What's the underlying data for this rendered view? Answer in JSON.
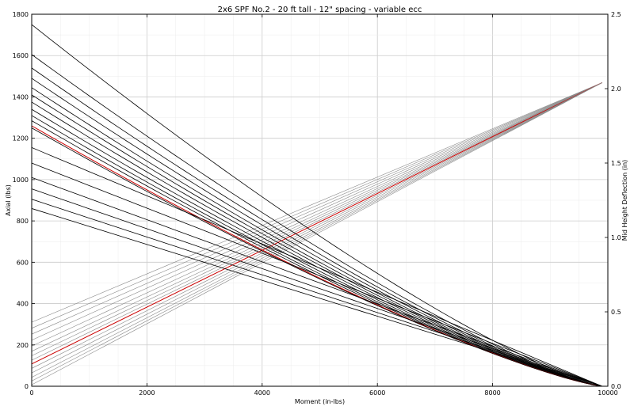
{
  "chart_data": {
    "type": "line",
    "title": "2x6 SPF No.2 - 20 ft tall - 12\" spacing - variable ecc",
    "xlabel": "Moment (in-lbs)",
    "ylabel": "Axial (lbs)",
    "y2label": "Mid Height Deflection (in)",
    "xlim": [
      0,
      10000
    ],
    "ylim": [
      0,
      1800
    ],
    "y2lim": [
      0,
      2.5
    ],
    "x_ticks": [
      "0",
      "2000",
      "4000",
      "6000",
      "8000",
      "10000"
    ],
    "y_ticks": [
      "0",
      "200",
      "400",
      "600",
      "800",
      "1000",
      "1200",
      "1400",
      "1600",
      "1800"
    ],
    "y2_ticks": [
      "0.0",
      "0.5",
      "1.0",
      "1.5",
      "2.0",
      "2.5"
    ],
    "grid": true,
    "colors": {
      "interaction": "#000000",
      "deflection": "#888888",
      "highlight": "#cc0000"
    },
    "interaction_curves": [
      {
        "start_axial": 1750,
        "end_moment": 9900,
        "kind": "curved"
      },
      {
        "start_axial": 1605,
        "end_moment": 9900,
        "kind": "curved"
      },
      {
        "start_axial": 1540,
        "end_moment": 9900,
        "kind": "curved"
      },
      {
        "start_axial": 1490,
        "end_moment": 9900,
        "kind": "curved"
      },
      {
        "start_axial": 1445,
        "end_moment": 9900,
        "kind": "curved"
      },
      {
        "start_axial": 1410,
        "end_moment": 9900,
        "kind": "curved"
      },
      {
        "start_axial": 1375,
        "end_moment": 9900,
        "kind": "curved"
      },
      {
        "start_axial": 1340,
        "end_moment": 9900,
        "kind": "curved"
      },
      {
        "start_axial": 1310,
        "end_moment": 9900,
        "kind": "curved"
      },
      {
        "start_axial": 1285,
        "end_moment": 9900,
        "kind": "curved"
      },
      {
        "start_axial": 1260,
        "end_moment": 9900,
        "kind": "curved",
        "highlight": true
      },
      {
        "start_axial": 1250,
        "end_moment": 9900,
        "kind": "curved"
      },
      {
        "start_axial": 1155,
        "end_moment": 9900,
        "kind": "straight"
      },
      {
        "start_axial": 1080,
        "end_moment": 9900,
        "kind": "straight"
      },
      {
        "start_axial": 1010,
        "end_moment": 9900,
        "kind": "straight"
      },
      {
        "start_axial": 955,
        "end_moment": 9900,
        "kind": "straight"
      },
      {
        "start_axial": 905,
        "end_moment": 9900,
        "kind": "straight"
      },
      {
        "start_axial": 860,
        "end_moment": 9900,
        "kind": "straight"
      }
    ],
    "deflection_lines": [
      {
        "start_deflection": 0.43,
        "end_moment": 9900,
        "end_deflection": 2.04
      },
      {
        "start_deflection": 0.39,
        "end_moment": 9900,
        "end_deflection": 2.04
      },
      {
        "start_deflection": 0.35,
        "end_moment": 9900,
        "end_deflection": 2.04
      },
      {
        "start_deflection": 0.31,
        "end_moment": 9900,
        "end_deflection": 2.04
      },
      {
        "start_deflection": 0.27,
        "end_moment": 9900,
        "end_deflection": 2.04
      },
      {
        "start_deflection": 0.235,
        "end_moment": 9900,
        "end_deflection": 2.04
      },
      {
        "start_deflection": 0.205,
        "end_moment": 9900,
        "end_deflection": 2.04
      },
      {
        "start_deflection": 0.175,
        "end_moment": 9900,
        "end_deflection": 2.04
      },
      {
        "start_deflection": 0.15,
        "end_moment": 9900,
        "end_deflection": 2.04,
        "highlight": true
      },
      {
        "start_deflection": 0.12,
        "end_moment": 9900,
        "end_deflection": 2.04
      },
      {
        "start_deflection": 0.09,
        "end_moment": 9900,
        "end_deflection": 2.04
      },
      {
        "start_deflection": 0.06,
        "end_moment": 9900,
        "end_deflection": 2.04
      },
      {
        "start_deflection": 0.035,
        "end_moment": 9900,
        "end_deflection": 2.04
      },
      {
        "start_deflection": 0.01,
        "end_moment": 9900,
        "end_deflection": 2.04
      }
    ]
  }
}
